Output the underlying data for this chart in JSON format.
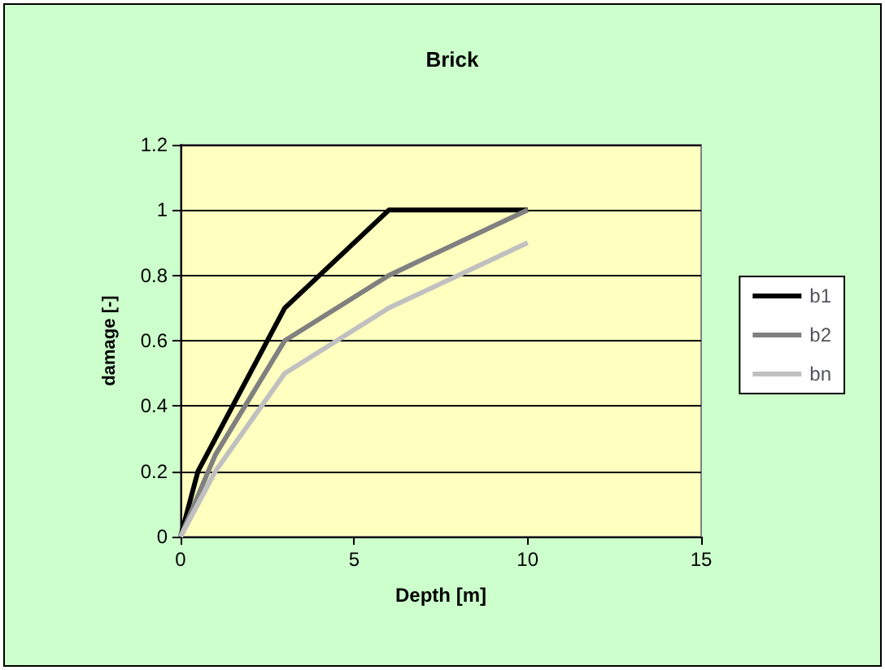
{
  "chart_data": {
    "type": "line",
    "title": "Brick",
    "xlabel": "Depth [m]",
    "ylabel": "damage [-]",
    "xlim": [
      0,
      15
    ],
    "xticks": [
      0,
      5,
      10,
      15
    ],
    "ylim": [
      0,
      1.2
    ],
    "yticks": [
      0,
      0.2,
      0.4,
      0.6,
      0.8,
      1,
      1.2
    ],
    "grid": "y",
    "legend": "right",
    "marker": "none",
    "line_style": "solid",
    "series": [
      {
        "name": "b1",
        "color": "#000000",
        "x": [
          0,
          0.5,
          3,
          6,
          10
        ],
        "values": [
          0,
          0.2,
          0.7,
          1,
          1
        ]
      },
      {
        "name": "b2",
        "color": "#808080",
        "x": [
          0,
          1,
          3,
          6,
          10
        ],
        "values": [
          0,
          0.25,
          0.6,
          0.8,
          1
        ]
      },
      {
        "name": "bn",
        "color": "#c0c0c0",
        "x": [
          0,
          1,
          3,
          6,
          10
        ],
        "values": [
          0,
          0.2,
          0.5,
          0.7,
          0.9
        ]
      }
    ]
  }
}
